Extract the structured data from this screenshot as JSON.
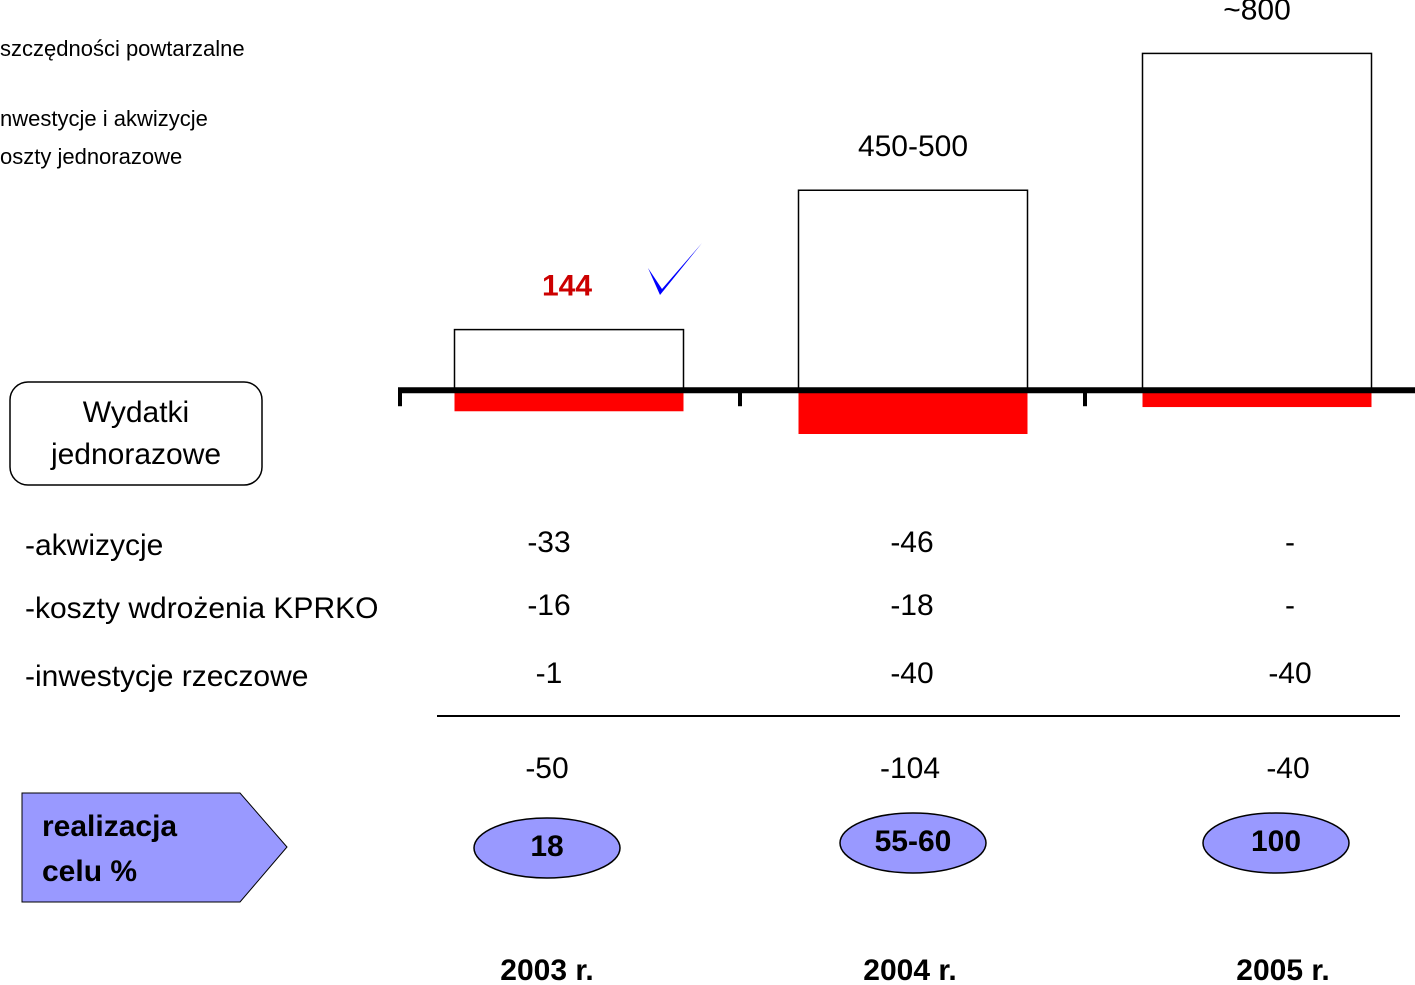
{
  "chart_data": {
    "type": "bar",
    "categories": [
      "2003 r.",
      "2004 r.",
      "2005 r."
    ],
    "series": [
      {
        "name": "szczędności powtarzalne",
        "color": "#ffffff",
        "values": [
          144,
          475,
          800
        ],
        "value_labels": [
          "144",
          "450-500",
          "~800"
        ]
      },
      {
        "name": "nwestycje i akwizycje",
        "color": "#ff0000",
        "values": [
          -50,
          -104,
          -40
        ]
      }
    ],
    "legend_note": "oszty jednorazowe",
    "ylim": [
      -180,
      820
    ]
  },
  "box_label": [
    "Wydatki",
    "jednorazowe"
  ],
  "table": {
    "rows": [
      [
        "-akwizycje",
        "-33",
        "-46",
        "-"
      ],
      [
        "-koszty wdrożenia KPRKO",
        "-16",
        "-18",
        "-"
      ],
      [
        "-inwestycje rzeczowe",
        "-1",
        "-40",
        "-40"
      ]
    ]
  },
  "target": {
    "label": [
      "realizacja",
      "celu %"
    ],
    "values": [
      "18",
      "55-60",
      "100"
    ]
  }
}
